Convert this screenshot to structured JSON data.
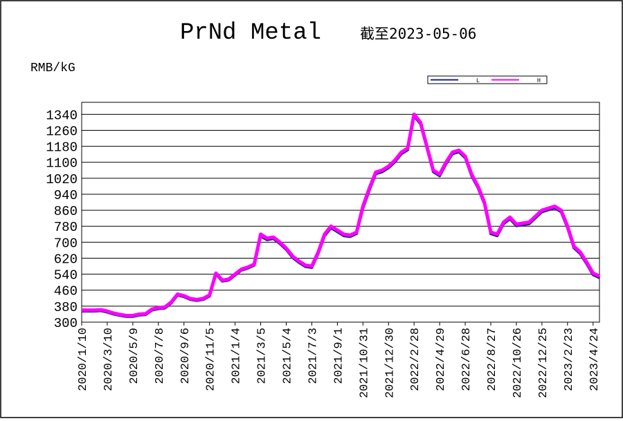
{
  "chart_data": {
    "type": "line",
    "title": "PrNd Metal",
    "subtitle": "截至2023-05-06",
    "y_label": "RMB/kG",
    "categories": [
      "2020/1/10",
      null,
      null,
      null,
      "2020/3/10",
      null,
      null,
      null,
      "2020/5/9",
      null,
      null,
      null,
      "2020/7/8",
      null,
      null,
      null,
      "2020/9/6",
      null,
      null,
      null,
      "2020/11/5",
      null,
      null,
      null,
      "2021/1/4",
      null,
      null,
      null,
      "2021/3/5",
      null,
      null,
      null,
      "2021/5/4",
      null,
      null,
      null,
      "2021/7/3",
      null,
      null,
      null,
      "2021/9/1",
      null,
      null,
      null,
      "2021/10/31",
      null,
      null,
      null,
      "2021/12/30",
      null,
      null,
      null,
      "2022/2/28",
      null,
      null,
      null,
      "2022/4/29",
      null,
      null,
      null,
      "2022/6/28",
      null,
      null,
      null,
      "2022/8/27",
      null,
      null,
      null,
      "2022/10/26",
      null,
      null,
      null,
      "2022/12/25",
      null,
      null,
      null,
      "2023/2/23",
      null,
      null,
      null,
      "2023/4/24",
      null
    ],
    "series": [
      {
        "name": "L",
        "color": "#1a237e",
        "values": [
          355,
          355,
          355,
          357,
          350,
          340,
          333,
          328,
          328,
          335,
          337,
          360,
          367,
          370,
          395,
          435,
          427,
          413,
          408,
          413,
          430,
          540,
          505,
          510,
          535,
          560,
          570,
          585,
          730,
          712,
          718,
          693,
          663,
          623,
          598,
          578,
          573,
          643,
          732,
          772,
          752,
          732,
          728,
          743,
          870,
          960,
          1042,
          1052,
          1072,
          1102,
          1142,
          1162,
          1332,
          1292,
          1172,
          1052,
          1032,
          1092,
          1142,
          1152,
          1122,
          1032,
          972,
          892,
          742,
          732,
          792,
          817,
          782,
          787,
          792,
          822,
          852,
          862,
          872,
          852,
          772,
          672,
          642,
          592,
          537,
          522
        ]
      },
      {
        "name": "H",
        "color": "#ff00ff",
        "values": [
          360,
          360,
          360,
          362,
          355,
          345,
          338,
          333,
          333,
          340,
          342,
          365,
          372,
          375,
          400,
          440,
          432,
          418,
          413,
          418,
          435,
          545,
          510,
          515,
          540,
          565,
          575,
          590,
          740,
          720,
          725,
          700,
          670,
          630,
          605,
          585,
          580,
          650,
          740,
          780,
          760,
          740,
          735,
          750,
          880,
          970,
          1050,
          1060,
          1080,
          1110,
          1150,
          1170,
          1340,
          1300,
          1180,
          1060,
          1040,
          1100,
          1150,
          1160,
          1130,
          1040,
          980,
          900,
          750,
          740,
          800,
          825,
          790,
          795,
          800,
          830,
          860,
          870,
          880,
          860,
          780,
          680,
          650,
          600,
          545,
          530
        ]
      }
    ],
    "ylim": [
      300,
      1400
    ],
    "yticks": [
      300,
      380,
      460,
      540,
      620,
      700,
      780,
      860,
      940,
      1020,
      1100,
      1180,
      1260,
      1340
    ],
    "grid": true
  }
}
